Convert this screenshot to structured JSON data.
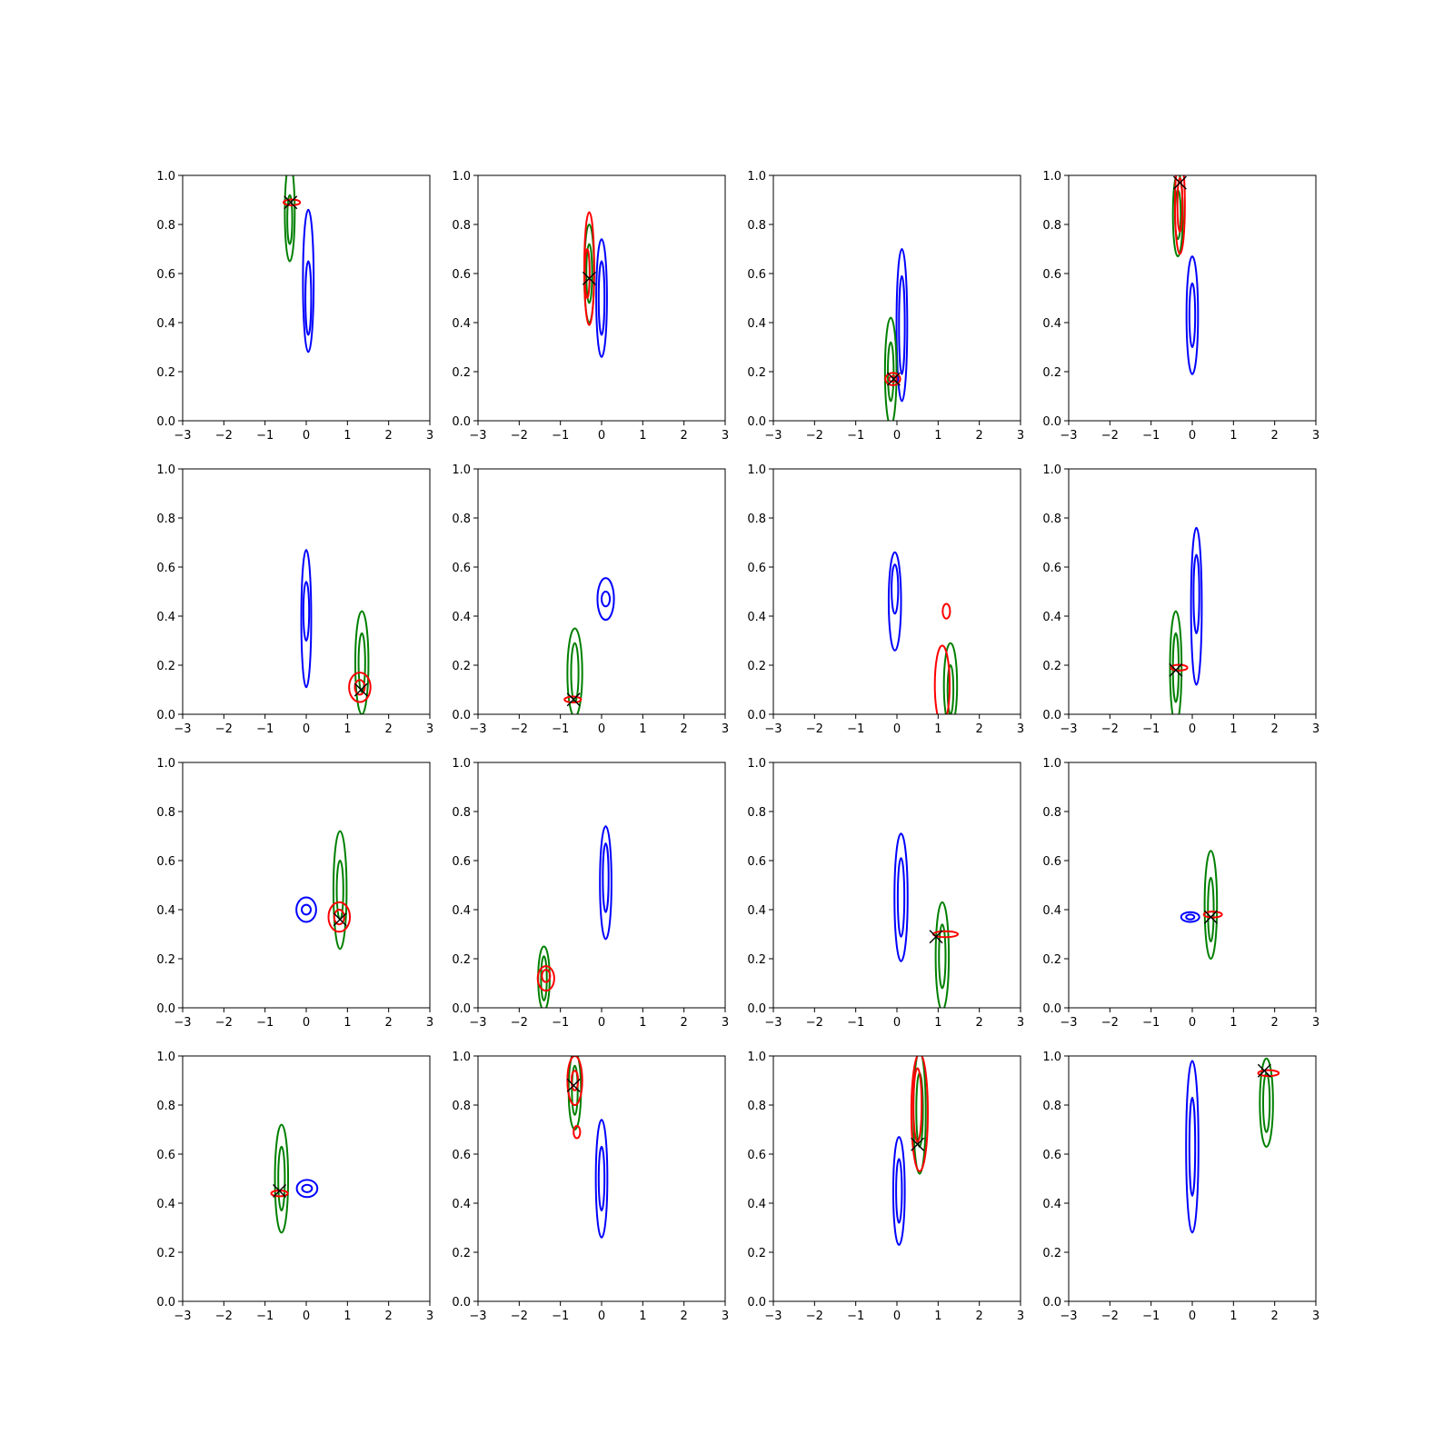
{
  "chart_data": {
    "type": "contour",
    "rows": 4,
    "cols": 4,
    "xlim": [
      -3,
      3
    ],
    "ylim": [
      0,
      1
    ],
    "xticks": [
      -3,
      -2,
      -1,
      0,
      1,
      2,
      3
    ],
    "yticks": [
      0.0,
      0.2,
      0.4,
      0.6,
      0.8,
      1.0
    ],
    "xtick_labels": [
      "−3",
      "−2",
      "−1",
      "0",
      "1",
      "2",
      "3"
    ],
    "ytick_labels": [
      "0.0",
      "0.2",
      "0.4",
      "0.6",
      "0.8",
      "1.0"
    ],
    "colors": {
      "blue": "#0000ff",
      "green": "#008000",
      "red": "#ff0000",
      "marker": "#000000"
    },
    "panels": [
      {
        "blue": [
          [
            0.05,
            0.57,
            0.13,
            0.29
          ],
          [
            0.05,
            0.5,
            0.07,
            0.15
          ]
        ],
        "green": [
          [
            -0.4,
            0.85,
            0.12,
            0.2
          ],
          [
            -0.4,
            0.82,
            0.06,
            0.1
          ]
        ],
        "red": [
          [
            -0.35,
            0.89,
            0.2,
            0.012
          ]
        ],
        "x": [
          -0.38,
          0.89
        ]
      },
      {
        "blue": [
          [
            0.0,
            0.5,
            0.13,
            0.24
          ],
          [
            0.0,
            0.5,
            0.07,
            0.15
          ]
        ],
        "green": [
          [
            -0.3,
            0.6,
            0.12,
            0.2
          ],
          [
            -0.3,
            0.6,
            0.07,
            0.12
          ]
        ],
        "red": [
          [
            -0.3,
            0.62,
            0.12,
            0.23
          ],
          [
            -0.35,
            0.6,
            0.06,
            0.1
          ]
        ],
        "x": [
          -0.3,
          0.58
        ]
      },
      {
        "blue": [
          [
            0.12,
            0.39,
            0.13,
            0.31
          ],
          [
            0.12,
            0.39,
            0.07,
            0.2
          ]
        ],
        "green": [
          [
            -0.15,
            0.2,
            0.14,
            0.22
          ],
          [
            -0.15,
            0.2,
            0.07,
            0.12
          ]
        ],
        "red": [
          [
            -0.1,
            0.17,
            0.18,
            0.025
          ],
          [
            -0.1,
            0.17,
            0.09,
            0.012
          ]
        ],
        "x": [
          -0.08,
          0.17
        ]
      },
      {
        "blue": [
          [
            0.0,
            0.43,
            0.14,
            0.24
          ],
          [
            0.0,
            0.43,
            0.07,
            0.13
          ]
        ],
        "green": [
          [
            -0.35,
            0.84,
            0.12,
            0.17
          ],
          [
            -0.35,
            0.84,
            0.07,
            0.1
          ]
        ],
        "red": [
          [
            -0.3,
            0.88,
            0.12,
            0.2
          ],
          [
            -0.3,
            0.88,
            0.06,
            0.11
          ]
        ],
        "x": [
          -0.3,
          0.97
        ]
      },
      {
        "blue": [
          [
            0.0,
            0.39,
            0.12,
            0.28
          ],
          [
            0.0,
            0.42,
            0.07,
            0.12
          ]
        ],
        "green": [
          [
            1.35,
            0.21,
            0.16,
            0.21
          ],
          [
            1.35,
            0.21,
            0.08,
            0.12
          ]
        ],
        "red": [
          [
            1.3,
            0.11,
            0.26,
            0.06
          ],
          [
            1.3,
            0.11,
            0.12,
            0.03
          ]
        ],
        "x": [
          1.33,
          0.1
        ]
      },
      {
        "blue": [
          [
            0.1,
            0.47,
            0.2,
            0.085
          ],
          [
            0.1,
            0.47,
            0.1,
            0.03
          ]
        ],
        "green": [
          [
            -0.65,
            0.17,
            0.18,
            0.18
          ],
          [
            -0.65,
            0.17,
            0.09,
            0.12
          ]
        ],
        "red": [
          [
            -0.7,
            0.06,
            0.2,
            0.012
          ]
        ],
        "x": [
          -0.68,
          0.06
        ]
      },
      {
        "blue": [
          [
            -0.05,
            0.46,
            0.15,
            0.2
          ],
          [
            -0.05,
            0.51,
            0.08,
            0.1
          ]
        ],
        "green": [
          [
            1.3,
            0.12,
            0.16,
            0.17
          ],
          [
            1.3,
            0.1,
            0.07,
            0.1
          ]
        ],
        "red": [
          [
            1.1,
            0.12,
            0.18,
            0.16
          ],
          [
            1.2,
            0.42,
            0.09,
            0.03
          ]
        ],
        "x": null
      },
      {
        "blue": [
          [
            0.1,
            0.44,
            0.13,
            0.32
          ],
          [
            0.1,
            0.49,
            0.07,
            0.16
          ]
        ],
        "green": [
          [
            -0.4,
            0.19,
            0.14,
            0.23
          ],
          [
            -0.4,
            0.19,
            0.07,
            0.14
          ]
        ],
        "red": [
          [
            -0.32,
            0.19,
            0.2,
            0.012
          ]
        ],
        "x": [
          -0.4,
          0.18
        ]
      },
      {
        "blue": [
          [
            0.0,
            0.4,
            0.24,
            0.05
          ],
          [
            0.0,
            0.4,
            0.11,
            0.02
          ]
        ],
        "green": [
          [
            0.82,
            0.48,
            0.16,
            0.24
          ],
          [
            0.82,
            0.48,
            0.08,
            0.12
          ]
        ],
        "red": [
          [
            0.8,
            0.37,
            0.26,
            0.06
          ],
          [
            0.8,
            0.37,
            0.12,
            0.03
          ]
        ],
        "x": [
          0.82,
          0.36
        ]
      },
      {
        "blue": [
          [
            0.1,
            0.51,
            0.14,
            0.23
          ],
          [
            0.1,
            0.53,
            0.07,
            0.14
          ]
        ],
        "green": [
          [
            -1.4,
            0.12,
            0.14,
            0.13
          ],
          [
            -1.4,
            0.12,
            0.07,
            0.09
          ]
        ],
        "red": [
          [
            -1.35,
            0.12,
            0.2,
            0.05
          ],
          [
            -1.35,
            0.13,
            0.1,
            0.025
          ]
        ],
        "x": null
      },
      {
        "blue": [
          [
            0.1,
            0.45,
            0.16,
            0.26
          ],
          [
            0.1,
            0.45,
            0.08,
            0.16
          ]
        ],
        "green": [
          [
            1.1,
            0.21,
            0.16,
            0.22
          ],
          [
            1.1,
            0.21,
            0.08,
            0.13
          ]
        ],
        "red": [
          [
            1.18,
            0.3,
            0.3,
            0.012
          ]
        ],
        "x": [
          0.95,
          0.29
        ]
      },
      {
        "blue": [
          [
            -0.05,
            0.37,
            0.22,
            0.02
          ],
          [
            -0.05,
            0.37,
            0.1,
            0.01
          ]
        ],
        "green": [
          [
            0.45,
            0.42,
            0.15,
            0.22
          ],
          [
            0.45,
            0.4,
            0.07,
            0.13
          ]
        ],
        "red": [
          [
            0.5,
            0.38,
            0.22,
            0.012
          ]
        ],
        "x": [
          0.45,
          0.37
        ]
      },
      {
        "blue": [
          [
            0.02,
            0.46,
            0.25,
            0.035
          ],
          [
            0.02,
            0.46,
            0.12,
            0.015
          ]
        ],
        "green": [
          [
            -0.6,
            0.5,
            0.16,
            0.22
          ],
          [
            -0.6,
            0.5,
            0.08,
            0.13
          ]
        ],
        "red": [
          [
            -0.65,
            0.44,
            0.2,
            0.012
          ]
        ],
        "x": [
          -0.65,
          0.45
        ]
      },
      {
        "blue": [
          [
            0.0,
            0.5,
            0.14,
            0.24
          ],
          [
            0.0,
            0.5,
            0.07,
            0.13
          ]
        ],
        "green": [
          [
            -0.65,
            0.86,
            0.15,
            0.16
          ],
          [
            -0.65,
            0.86,
            0.07,
            0.1
          ]
        ],
        "red": [
          [
            -0.65,
            0.9,
            0.18,
            0.1
          ],
          [
            -0.65,
            0.9,
            0.08,
            0.04
          ],
          [
            -0.6,
            0.69,
            0.08,
            0.025
          ]
        ],
        "x": [
          -0.68,
          0.88
        ]
      },
      {
        "blue": [
          [
            0.05,
            0.45,
            0.14,
            0.22
          ],
          [
            0.05,
            0.45,
            0.07,
            0.13
          ]
        ],
        "green": [
          [
            0.55,
            0.77,
            0.15,
            0.25
          ],
          [
            0.55,
            0.78,
            0.08,
            0.15
          ]
        ],
        "red": [
          [
            0.55,
            0.77,
            0.2,
            0.24
          ],
          [
            0.5,
            0.8,
            0.1,
            0.15
          ]
        ],
        "x": [
          0.5,
          0.64
        ]
      },
      {
        "blue": [
          [
            0.0,
            0.63,
            0.15,
            0.35
          ],
          [
            0.0,
            0.63,
            0.07,
            0.2
          ]
        ],
        "green": [
          [
            1.8,
            0.81,
            0.16,
            0.18
          ],
          [
            1.8,
            0.81,
            0.08,
            0.12
          ]
        ],
        "red": [
          [
            1.85,
            0.93,
            0.25,
            0.012
          ]
        ],
        "x": [
          1.75,
          0.94
        ]
      }
    ]
  }
}
